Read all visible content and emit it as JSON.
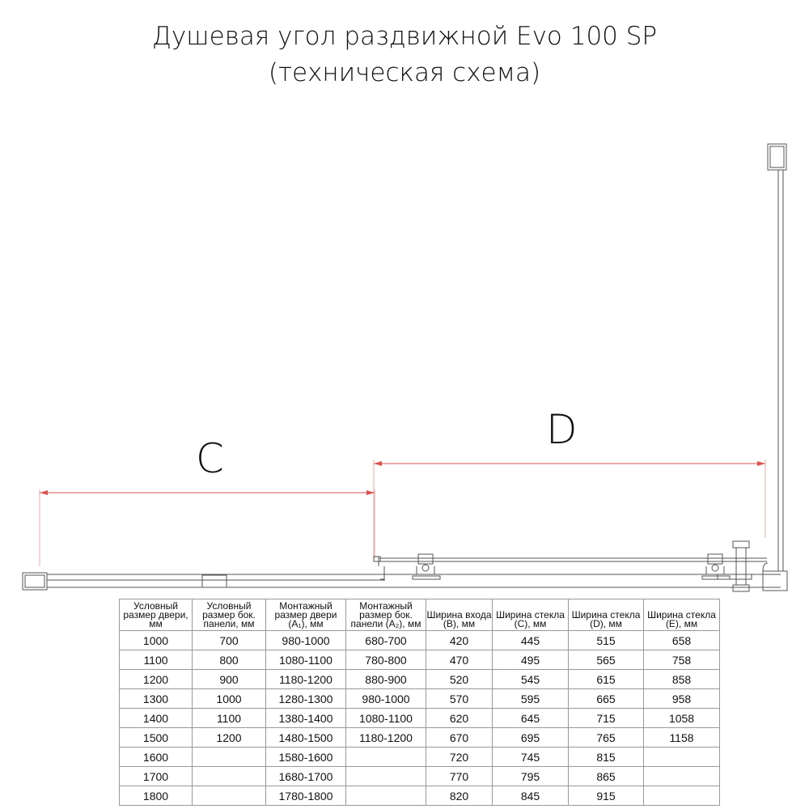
{
  "title": {
    "line1": "Душевая угол раздвижной Evo 100 SP",
    "line2": "(техническая схема)"
  },
  "dimensions": {
    "c_label": "C",
    "d_label": "D"
  },
  "colors": {
    "dimension_line": "#d9534f",
    "drawing": "#555555"
  },
  "table": {
    "headers": [
      "Условный размер двери, мм",
      "Условный размер бок. панели, мм",
      "Монтажный размер двери (A₁), мм",
      "Монтажный размер бок. панели (A₂), мм",
      "Ширина входа (B), мм",
      "Ширина стекла (C), мм",
      "Ширина стекла (D), мм",
      "Ширина стекла (E), мм"
    ],
    "rows": [
      [
        "1000",
        "700",
        "980-1000",
        "680-700",
        "420",
        "445",
        "515",
        "658"
      ],
      [
        "1100",
        "800",
        "1080-1100",
        "780-800",
        "470",
        "495",
        "565",
        "758"
      ],
      [
        "1200",
        "900",
        "1180-1200",
        "880-900",
        "520",
        "545",
        "615",
        "858"
      ],
      [
        "1300",
        "1000",
        "1280-1300",
        "980-1000",
        "570",
        "595",
        "665",
        "958"
      ],
      [
        "1400",
        "1100",
        "1380-1400",
        "1080-1100",
        "620",
        "645",
        "715",
        "1058"
      ],
      [
        "1500",
        "1200",
        "1480-1500",
        "1180-1200",
        "670",
        "695",
        "765",
        "1158"
      ],
      [
        "1600",
        "",
        "1580-1600",
        "",
        "720",
        "745",
        "815",
        ""
      ],
      [
        "1700",
        "",
        "1680-1700",
        "",
        "770",
        "795",
        "865",
        ""
      ],
      [
        "1800",
        "",
        "1780-1800",
        "",
        "820",
        "845",
        "915",
        ""
      ]
    ]
  }
}
